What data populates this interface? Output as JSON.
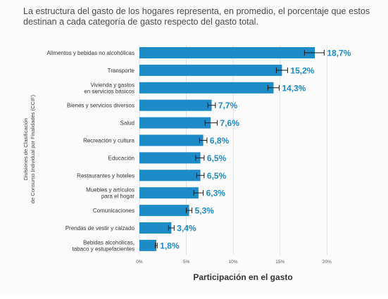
{
  "intro_text": "La estructura del gasto de los hogares representa, en promedio, el porcentaje que estos destinan a cada categoría de gasto respecto del gasto total.",
  "colors": {
    "bar": "#1d8bc8",
    "value_label": "#1d8bc8",
    "error_bar": "#1a1a1a",
    "grid": "#d0d0d0",
    "text": "#333333"
  },
  "chart_data": {
    "type": "bar",
    "orientation": "horizontal",
    "title": "",
    "xlabel": "Participación en el gasto",
    "ylabel": [
      "Divisiones de Clasificación",
      "de Consumo Individual por Finalidades (CCIF)"
    ],
    "xlim": [
      0,
      22
    ],
    "x_ticks": [
      0,
      5,
      10,
      15,
      20
    ],
    "x_tick_labels": [
      "0%",
      "5%",
      "10%",
      "15%",
      "20%"
    ],
    "grid": "vertical",
    "error_bars": true,
    "categories": [
      [
        "Alimentos y bebidas no alcohólicas"
      ],
      [
        "Transporte"
      ],
      [
        "Vivienda y gastos",
        "en servicios básicos"
      ],
      [
        "Bienes y servicios diversos"
      ],
      [
        "Salud"
      ],
      [
        "Recreación y cultura"
      ],
      [
        "Educación"
      ],
      [
        "Restaurantes y hoteles"
      ],
      [
        "Muebles y artículos",
        "para el hogar"
      ],
      [
        "Comunicaciones"
      ],
      [
        "Prendas de vestir y calzado"
      ],
      [
        "Bebidas alcohólicas,",
        "tabaco y estupefacientes"
      ]
    ],
    "values": [
      18.7,
      15.2,
      14.3,
      7.7,
      7.6,
      6.8,
      6.5,
      6.5,
      6.3,
      5.3,
      3.4,
      1.8
    ],
    "value_labels": [
      "18,7%",
      "15,2%",
      "14,3%",
      "7,7%",
      "7,6%",
      "6,8%",
      "6,5%",
      "6,5%",
      "6,3%",
      "5,3%",
      "3,4%",
      "1,8%"
    ],
    "error_low": [
      17.6,
      14.6,
      13.7,
      7.3,
      7.0,
      6.4,
      6.0,
      6.1,
      5.8,
      5.0,
      3.1,
      1.7
    ],
    "error_high": [
      19.7,
      15.8,
      14.9,
      8.1,
      8.3,
      7.2,
      6.9,
      6.9,
      6.8,
      5.6,
      3.7,
      1.9
    ]
  }
}
